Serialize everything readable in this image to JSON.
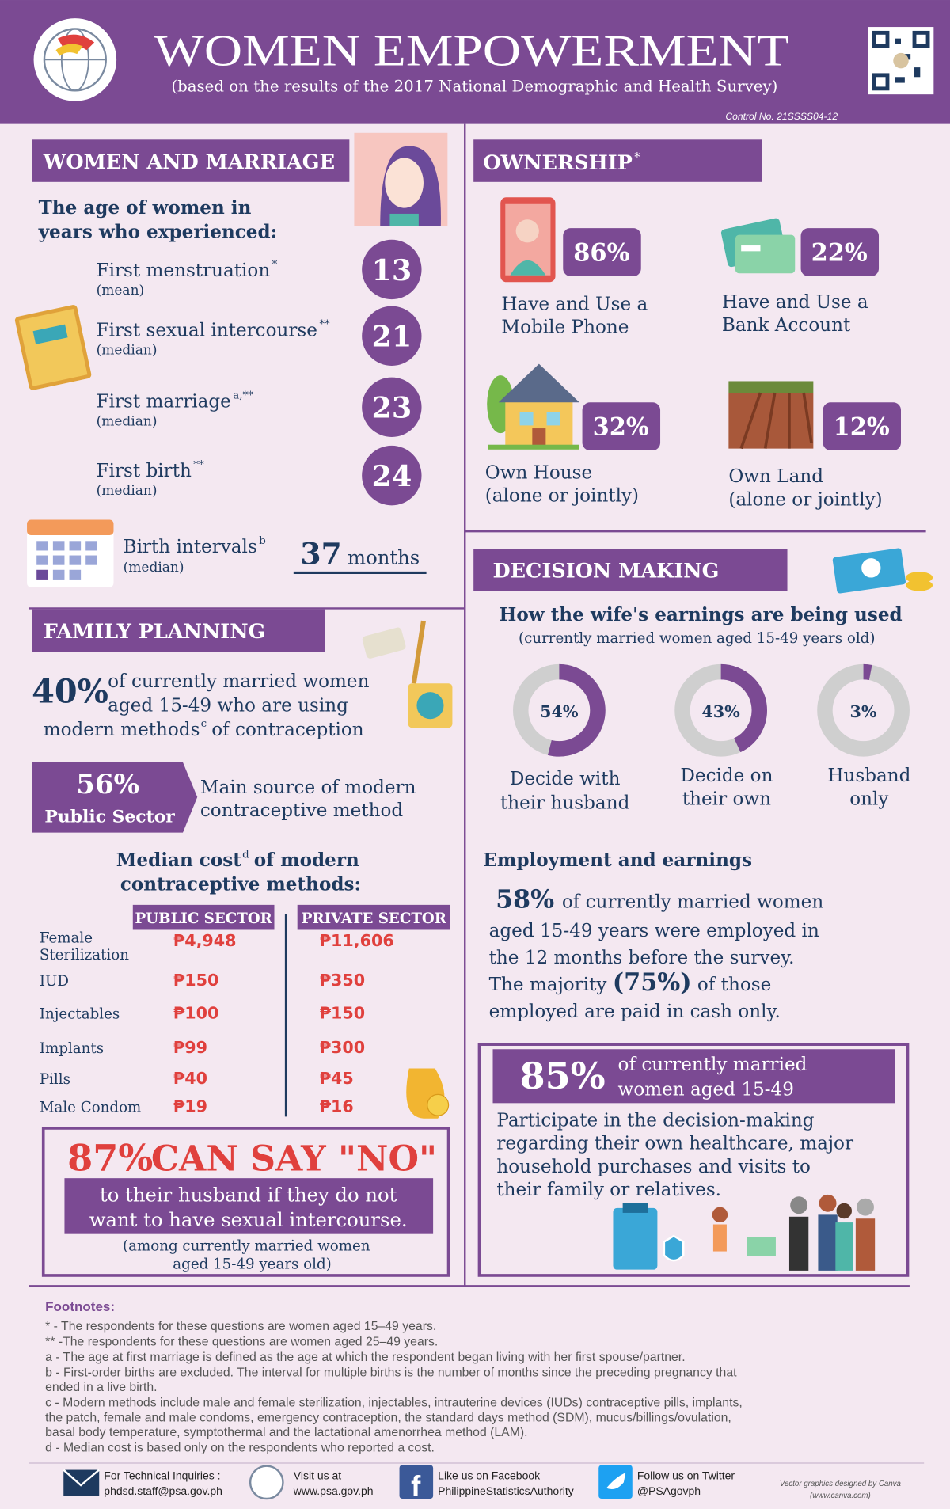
{
  "header": {
    "title": "WOMEN EMPOWERMENT",
    "subtitle": "(based on the results of the 2017 National Demographic and Health Survey)",
    "control": "Control No. 21SSSS04-12"
  },
  "marriage": {
    "heading": "WOMEN AND MARRIAGE",
    "intro": [
      "The age of women in",
      "years who experienced:"
    ],
    "items": [
      {
        "label": "First menstruation",
        "note": "*",
        "stat": "(mean)",
        "value": 13
      },
      {
        "label": "First sexual intercourse",
        "note": "**",
        "stat": "(median)",
        "value": 21
      },
      {
        "label": "First marriage",
        "note": "a,**",
        "stat": "(median)",
        "value": 23
      },
      {
        "label": "First birth",
        "note": "**",
        "stat": "(median)",
        "value": 24
      }
    ],
    "interval": {
      "label": "Birth intervals",
      "note": "b",
      "stat": "(median)",
      "value": 37,
      "unit": "months"
    }
  },
  "family_planning": {
    "heading": "FAMILY PLANNING",
    "modern": {
      "value": "40%",
      "lines": [
        "of currently married women",
        "aged 15-49 who are using"
      ],
      "line3": "modern methods",
      "note": "c",
      "line3_end": "of contraception"
    },
    "source": {
      "value": "56%",
      "label": "Public Sector",
      "text": [
        "Main source of modern",
        "contraceptive method"
      ]
    },
    "cost": {
      "title": "Median cost",
      "note": "d",
      "title_end": "of modern",
      "title2": "contraceptive methods:",
      "columns": [
        "PUBLIC SECTOR",
        "PRIVATE SECTOR"
      ],
      "rows": [
        {
          "method": [
            "Female",
            "Sterilization"
          ],
          "public": "₱4,948",
          "private": "₱11,606"
        },
        {
          "method": [
            "IUD"
          ],
          "public": "₱150",
          "private": "₱350"
        },
        {
          "method": [
            "Injectables"
          ],
          "public": "₱100",
          "private": "₱150"
        },
        {
          "method": [
            "Implants"
          ],
          "public": "₱99",
          "private": "₱300"
        },
        {
          "method": [
            "Pills"
          ],
          "public": "₱40",
          "private": "₱45"
        },
        {
          "method": [
            "Male Condom"
          ],
          "public": "₱19",
          "private": "₱16"
        }
      ]
    },
    "say_no": {
      "value": "87%",
      "headline": "CAN SAY \"NO\"",
      "lines": [
        "to their husband if they do not",
        "want to have sexual intercourse."
      ],
      "note": [
        "(among currently married women",
        "aged 15-49 years old)"
      ]
    }
  },
  "ownership": {
    "heading": "OWNERSHIP",
    "note": "*",
    "items": [
      {
        "value": "86%",
        "label": [
          "Have and Use a",
          "Mobile Phone"
        ]
      },
      {
        "value": "22%",
        "label": [
          "Have and Use a",
          "Bank Account"
        ]
      },
      {
        "value": "32%",
        "label": [
          "Own House",
          "(alone or jointly)"
        ]
      },
      {
        "value": "12%",
        "label": [
          "Own Land",
          "(alone or jointly)"
        ]
      }
    ]
  },
  "decision": {
    "heading": "DECISION MAKING",
    "title": "How the wife's earnings are being used",
    "subtitle": "(currently married women aged 15-49 years old)",
    "earnings": [
      {
        "value": 54,
        "label": "54%",
        "caption": [
          "Decide with",
          "their husband"
        ]
      },
      {
        "value": 43,
        "label": "43%",
        "caption": [
          "Decide on",
          "their own"
        ]
      },
      {
        "value": 3,
        "label": "3%",
        "caption": [
          "Husband",
          "only"
        ]
      }
    ],
    "employment": {
      "heading": "Employment and earnings",
      "value": "58%",
      "line1": "of currently married women",
      "lines": [
        "aged 15-49 years were employed in",
        "the 12 months before the survey."
      ],
      "majority": {
        "before": "The majority",
        "value": "(75%)",
        "after": "of those"
      },
      "last": "employed are paid in cash only."
    },
    "healthcare": {
      "value": "85%",
      "label": [
        "of currently married",
        "women aged 15-49"
      ],
      "lines": [
        "Participate in the decision-making",
        "regarding their own healthcare, major",
        "household purchases and visits to",
        "their family or relatives."
      ]
    }
  },
  "footnotes": {
    "heading": "Footnotes:",
    "lines": [
      "* - The respondents for these questions are women aged 15–49 years.",
      "** -The respondents for these questions are women aged 25–49 years.",
      "a - The age at first marriage is defined as the age at which the respondent began living with her first spouse/partner.",
      "b - First-order births are excluded. The interval for multiple births is the number of months since the preceding pregnancy that",
      "ended in a live birth.",
      "c - Modern methods include male and female sterilization, injectables, intrauterine devices (IUDs) contraceptive pills, implants,",
      "the patch, female and male condoms, emergency contraception, the standard days method (SDM), mucus/billings/ovulation,",
      "basal body temperature, symptothermal and the lactational amenorrhea method (LAM).",
      "d - Median cost is based only on the respondents who reported a cost."
    ]
  },
  "footer": {
    "inquiries": {
      "label": "For Technical Inquiries :",
      "value": "phdsd.staff@psa.gov.ph"
    },
    "website": {
      "label": "Visit us at",
      "value": "www.psa.gov.ph"
    },
    "facebook": {
      "label": "Like us on Facebook",
      "value": "PhilippineStatisticsAuthority"
    },
    "twitter": {
      "label": "Follow us on Twitter",
      "value": "@PSAgovph"
    },
    "credit": [
      "Vector graphics designed by Canva",
      "(www.canva.com)"
    ]
  }
}
